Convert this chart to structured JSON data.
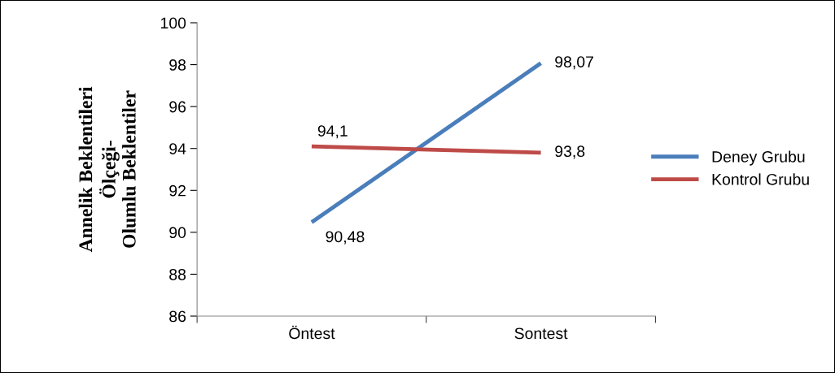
{
  "chart_data": {
    "type": "line",
    "ylabel": "Annelik Beklentileri\nÖlçeği-\nOlumlu Beklentiler",
    "categories": [
      "Öntest",
      "Sontest"
    ],
    "series": [
      {
        "name": "Deney Grubu",
        "color": "#4a7ebb",
        "values": [
          90.48,
          98.07
        ],
        "value_labels": [
          "90,48",
          "98,07"
        ]
      },
      {
        "name": "Kontrol Grubu",
        "color": "#be4b48",
        "values": [
          94.1,
          93.8
        ],
        "value_labels": [
          "94,1",
          "93,8"
        ]
      }
    ],
    "ylim": [
      86,
      100
    ],
    "yticks": [
      86,
      88,
      90,
      92,
      94,
      96,
      98,
      100
    ],
    "grid": false,
    "legend": "right",
    "marker": "none",
    "line_style": "solid"
  }
}
